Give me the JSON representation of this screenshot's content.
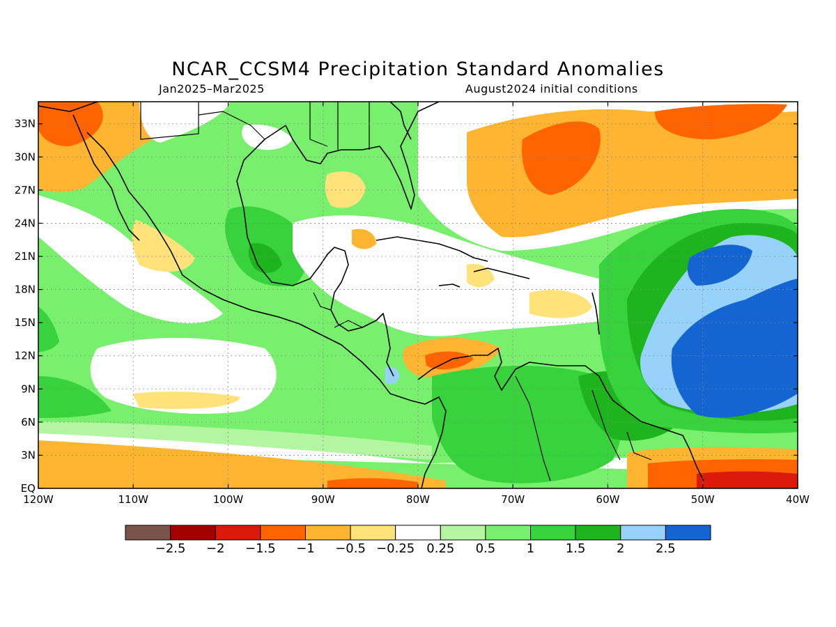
{
  "title": "NCAR_CCSM4 Precipitation Standard Anomalies",
  "subtitle_left": "Jan2025–Mar2025",
  "subtitle_right": "August2024 initial conditions",
  "map": {
    "lon_range": [
      -120,
      -40
    ],
    "lat_range": [
      0,
      35
    ],
    "lon_ticks": [
      "120W",
      "110W",
      "100W",
      "90W",
      "80W",
      "70W",
      "60W",
      "50W",
      "40W"
    ],
    "lat_ticks": [
      "EQ",
      "3N",
      "6N",
      "9N",
      "12N",
      "15N",
      "18N",
      "21N",
      "24N",
      "27N",
      "30N",
      "33N"
    ]
  },
  "colorbar": {
    "colors": [
      "#7a5448",
      "#a50000",
      "#dc1a0a",
      "#ff6400",
      "#ffb432",
      "#ffe27a",
      "#ffffff",
      "#b4f5a2",
      "#78f06e",
      "#37d23c",
      "#1eb41e",
      "#96d2fa",
      "#1464d2"
    ],
    "labels": [
      "−2.5",
      "−2",
      "−1.5",
      "−1",
      "−0.5",
      "−0.25",
      "0.25",
      "0.5",
      "1",
      "1.5",
      "2",
      "2.5"
    ]
  }
}
